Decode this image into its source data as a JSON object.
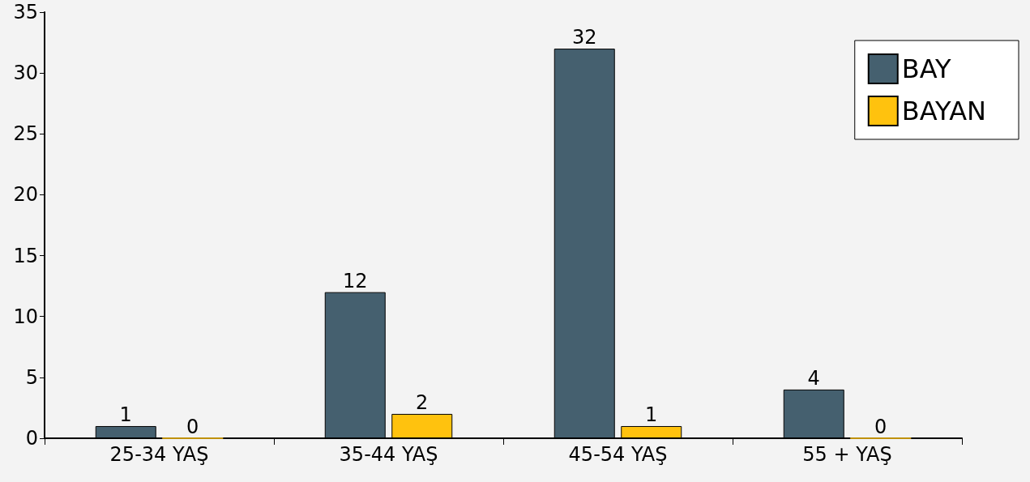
{
  "chart_data": {
    "type": "bar",
    "categories": [
      "25-34 YAŞ",
      "35-44 YAŞ",
      "45-54 YAŞ",
      "55 + YAŞ"
    ],
    "series": [
      {
        "name": "BAY",
        "color": "#45606f",
        "values": [
          1,
          12,
          32,
          4
        ]
      },
      {
        "name": "BAYAN",
        "color": "#ffc20e",
        "values": [
          0,
          2,
          1,
          0
        ]
      }
    ],
    "ylim": [
      0,
      35
    ],
    "yticks": [
      0,
      5,
      10,
      15,
      20,
      25,
      30,
      35
    ],
    "data_labels": true,
    "grid": false,
    "legend": "top right"
  }
}
